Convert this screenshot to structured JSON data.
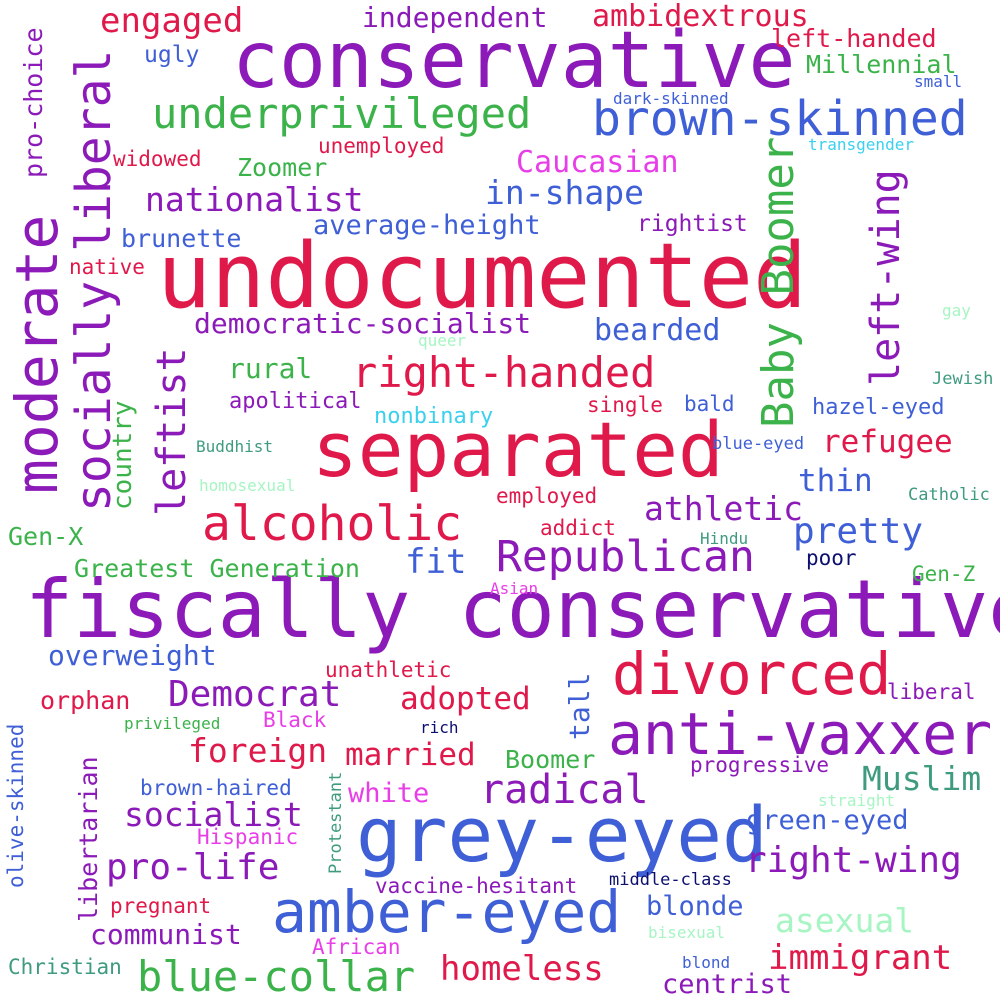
{
  "colors": {
    "crimson": "#e0194b",
    "purple": "#8b1ab8",
    "royal_blue": "#3f5fd6",
    "green": "#3bb34a",
    "magenta": "#e83ee8",
    "sky": "#3ad0ee",
    "mint": "#a6f5c3",
    "teal": "#3f9b7f",
    "navy": "#0d0f6e"
  },
  "words": [
    "conservative",
    "undocumented",
    "fiscally conservative",
    "separated",
    "grey-eyed",
    "amber-eyed",
    "anti-vaxxer",
    "divorced",
    "brown-skinned",
    "underprivileged",
    "alcoholic",
    "Republican",
    "moderate",
    "socially liberal",
    "Baby Boomer",
    "left-wing",
    "right-handed",
    "blue-collar",
    "engaged",
    "independent",
    "ambidextrous",
    "left-handed",
    "Millennial",
    "ugly",
    "small",
    "dark-skinned",
    "pro-choice",
    "transgender",
    "widowed",
    "unemployed",
    "Zoomer",
    "Caucasian",
    "nationalist",
    "in-shape",
    "brunette",
    "average-height",
    "rightist",
    "native",
    "democratic-socialist",
    "bearded",
    "gay",
    "queer",
    "rural",
    "Jewish",
    "apolitical",
    "single",
    "bald",
    "hazel-eyed",
    "nonbinary",
    "leftist",
    "Buddhist",
    "blue-eyed",
    "refugee",
    "country",
    "homosexual",
    "employed",
    "thin",
    "Catholic",
    "athletic",
    "addict",
    "pretty",
    "Gen-X",
    "fit",
    "Hindu",
    "Greatest Generation",
    "poor",
    "Asian",
    "Gen-Z",
    "overweight",
    "unathletic",
    "orphan",
    "Democrat",
    "adopted",
    "tall",
    "liberal",
    "privileged",
    "Black",
    "rich",
    "foreign",
    "married",
    "olive-skinned",
    "libertarian",
    "Boomer",
    "radical",
    "progressive",
    "Muslim",
    "brown-haired",
    "white",
    "straight",
    "socialist",
    "green-eyed",
    "Protestant",
    "Hispanic",
    "pro-life",
    "right-wing",
    "vaccine-hesitant",
    "middle-class",
    "pregnant",
    "blonde",
    "asexual",
    "communist",
    "African",
    "bisexual",
    "immigrant",
    "homeless",
    "Christian",
    "blond",
    "centrist"
  ]
}
